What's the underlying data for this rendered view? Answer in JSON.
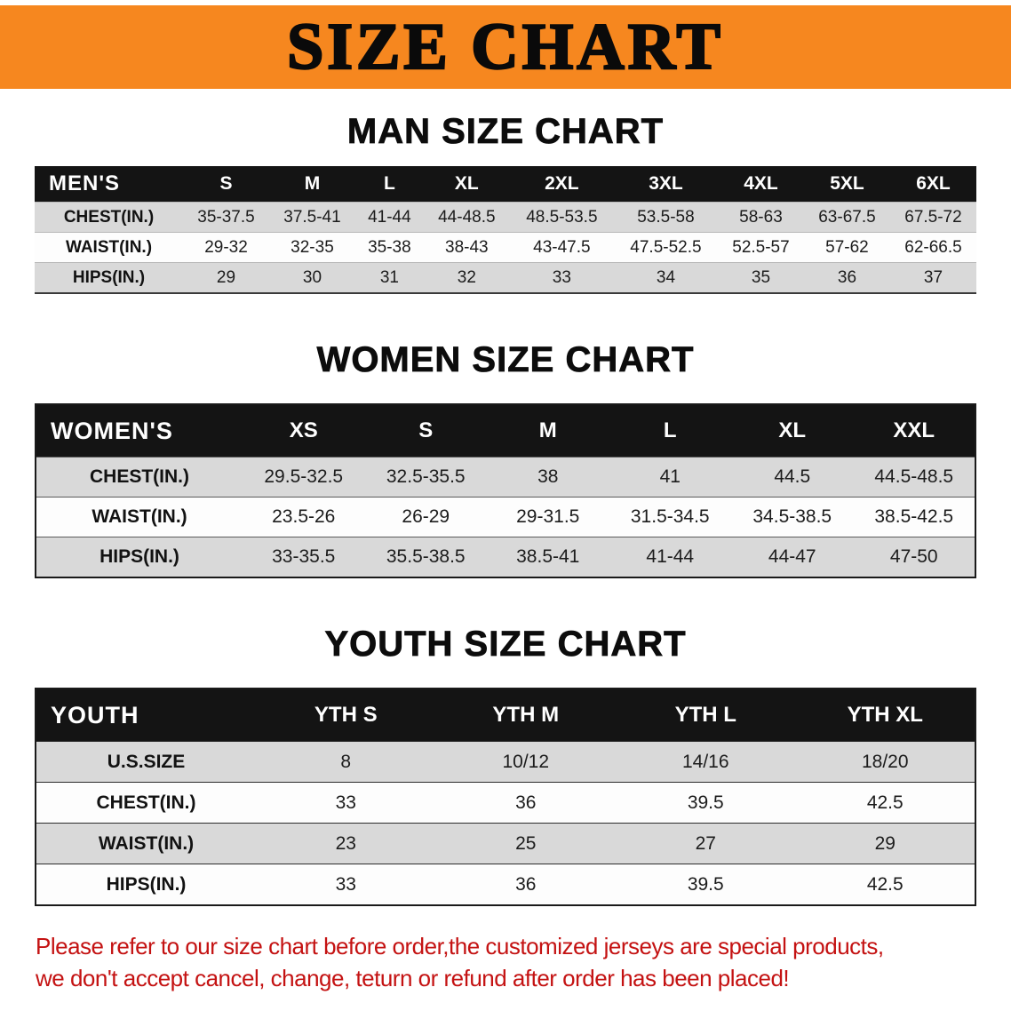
{
  "banner": {
    "title": "SIZE CHART"
  },
  "tables": [
    {
      "id": "men",
      "heading": "MAN SIZE CHART",
      "label": "MEN'S",
      "columns": [
        "S",
        "M",
        "L",
        "XL",
        "2XL",
        "3XL",
        "4XL",
        "5XL",
        "6XL"
      ],
      "rows": [
        {
          "label": "CHEST(IN.)",
          "values": [
            "35-37.5",
            "37.5-41",
            "41-44",
            "44-48.5",
            "48.5-53.5",
            "53.5-58",
            "58-63",
            "63-67.5",
            "67.5-72"
          ]
        },
        {
          "label": "WAIST(IN.)",
          "values": [
            "29-32",
            "32-35",
            "35-38",
            "38-43",
            "43-47.5",
            "47.5-52.5",
            "52.5-57",
            "57-62",
            "62-66.5"
          ]
        },
        {
          "label": "HIPS(IN.)",
          "values": [
            "29",
            "30",
            "31",
            "32",
            "33",
            "34",
            "35",
            "36",
            "37"
          ]
        }
      ]
    },
    {
      "id": "women",
      "heading": "WOMEN SIZE CHART",
      "label": "WOMEN'S",
      "columns": [
        "XS",
        "S",
        "M",
        "L",
        "XL",
        "XXL"
      ],
      "rows": [
        {
          "label": "CHEST(IN.)",
          "values": [
            "29.5-32.5",
            "32.5-35.5",
            "38",
            "41",
            "44.5",
            "44.5-48.5"
          ]
        },
        {
          "label": "WAIST(IN.)",
          "values": [
            "23.5-26",
            "26-29",
            "29-31.5",
            "31.5-34.5",
            "34.5-38.5",
            "38.5-42.5"
          ]
        },
        {
          "label": "HIPS(IN.)",
          "values": [
            "33-35.5",
            "35.5-38.5",
            "38.5-41",
            "41-44",
            "44-47",
            "47-50"
          ]
        }
      ]
    },
    {
      "id": "youth",
      "heading": "YOUTH SIZE CHART",
      "label": "YOUTH",
      "columns": [
        "YTH S",
        "YTH M",
        "YTH L",
        "YTH XL"
      ],
      "rows": [
        {
          "label": "U.S.SIZE",
          "values": [
            "8",
            "10/12",
            "14/16",
            "18/20"
          ]
        },
        {
          "label": "CHEST(IN.)",
          "values": [
            "33",
            "36",
            "39.5",
            "42.5"
          ]
        },
        {
          "label": "WAIST(IN.)",
          "values": [
            "23",
            "25",
            "27",
            "29"
          ]
        },
        {
          "label": "HIPS(IN.)",
          "values": [
            "33",
            "36",
            "39.5",
            "42.5"
          ]
        }
      ]
    }
  ],
  "footer": {
    "line1": "Please refer to our size chart before order,the customized jerseys are special products,",
    "line2": "we don't accept cancel, change, teturn or refund after order has been placed!"
  },
  "colors": {
    "banner_orange": "#f6871f",
    "header_black": "#141414",
    "stripe_gray": "#d9d9d9",
    "footer_red": "#c41212"
  }
}
